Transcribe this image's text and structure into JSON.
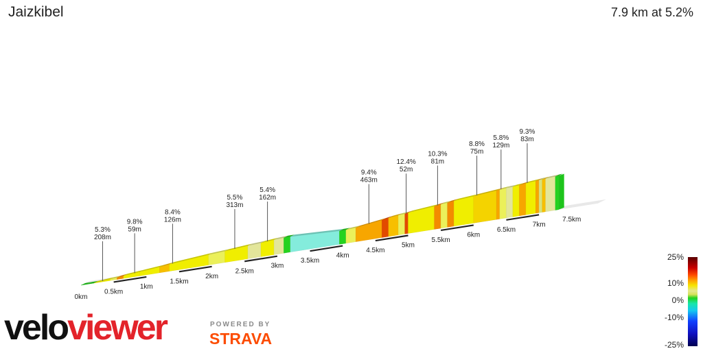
{
  "header": {
    "title": "Jaizkibel",
    "summary": "7.9 km at 5.2%"
  },
  "branding": {
    "logo_part1": "velo",
    "logo_part2": "viewer",
    "powered_by": "POWERED BY",
    "strava": "STRAVA",
    "logo_colors": {
      "velo": "#111111",
      "viewer": "#e3232a",
      "strava": "#fc4c02"
    }
  },
  "chart_data": {
    "type": "area",
    "subtype": "3d-gradient-profile",
    "title": "Jaizkibel",
    "xlabel": "",
    "ylabel": "",
    "xlim": [
      0,
      7.9
    ],
    "distance_ticks": [
      "0km",
      "0.5km",
      "1km",
      "1.5km",
      "2km",
      "2.5km",
      "3km",
      "3.5km",
      "4km",
      "4.5km",
      "5km",
      "5.5km",
      "6km",
      "6.5km",
      "7km",
      "7.5km"
    ],
    "segments": [
      {
        "end_km": 0.1,
        "gradient": 1.2
      },
      {
        "end_km": 0.2,
        "gradient": 0.5
      },
      {
        "end_km": 0.45,
        "gradient": 5.3
      },
      {
        "end_km": 0.55,
        "gradient": 4.6
      },
      {
        "end_km": 0.65,
        "gradient": 9.8
      },
      {
        "end_km": 0.9,
        "gradient": 5.8
      },
      {
        "end_km": 1.2,
        "gradient": 6.2
      },
      {
        "end_km": 1.35,
        "gradient": 8.4
      },
      {
        "end_km": 1.95,
        "gradient": 5.9
      },
      {
        "end_km": 2.2,
        "gradient": 4.5
      },
      {
        "end_km": 2.55,
        "gradient": 5.5
      },
      {
        "end_km": 2.75,
        "gradient": 4.2
      },
      {
        "end_km": 2.95,
        "gradient": 5.6
      },
      {
        "end_km": 3.1,
        "gradient": 3.6
      },
      {
        "end_km": 3.2,
        "gradient": 0.4
      },
      {
        "end_km": 3.95,
        "gradient": -3.0
      },
      {
        "end_km": 4.05,
        "gradient": 0.8
      },
      {
        "end_km": 4.2,
        "gradient": 4.8
      },
      {
        "end_km": 4.6,
        "gradient": 9.4
      },
      {
        "end_km": 4.7,
        "gradient": 11.8
      },
      {
        "end_km": 4.85,
        "gradient": 7.6
      },
      {
        "end_km": 4.95,
        "gradient": 5.2
      },
      {
        "end_km": 5.0,
        "gradient": 12.4
      },
      {
        "end_km": 5.4,
        "gradient": 6.1
      },
      {
        "end_km": 5.5,
        "gradient": 10.3
      },
      {
        "end_km": 5.6,
        "gradient": 5.2
      },
      {
        "end_km": 5.7,
        "gradient": 9.6
      },
      {
        "end_km": 6.0,
        "gradient": 5.6
      },
      {
        "end_km": 6.35,
        "gradient": 6.3
      },
      {
        "end_km": 6.4,
        "gradient": 8.8
      },
      {
        "end_km": 6.5,
        "gradient": 5.1
      },
      {
        "end_km": 6.6,
        "gradient": 3.6
      },
      {
        "end_km": 6.7,
        "gradient": 5.8
      },
      {
        "end_km": 6.8,
        "gradient": 9.0
      },
      {
        "end_km": 6.95,
        "gradient": 5.5
      },
      {
        "end_km": 7.0,
        "gradient": 9.3
      },
      {
        "end_km": 7.05,
        "gradient": 2.0
      },
      {
        "end_km": 7.1,
        "gradient": 7.6
      },
      {
        "end_km": 7.25,
        "gradient": 4.0
      },
      {
        "end_km": 7.3,
        "gradient": 1.2
      }
    ],
    "annotations": [
      {
        "at_km": 0.33,
        "grade": "5.3%",
        "length": "208m"
      },
      {
        "at_km": 0.82,
        "grade": "9.8%",
        "length": "59m"
      },
      {
        "at_km": 1.4,
        "grade": "8.4%",
        "length": "126m"
      },
      {
        "at_km": 2.35,
        "grade": "5.5%",
        "length": "313m"
      },
      {
        "at_km": 2.85,
        "grade": "5.4%",
        "length": "162m"
      },
      {
        "at_km": 4.4,
        "grade": "9.4%",
        "length": "463m"
      },
      {
        "at_km": 4.97,
        "grade": "12.4%",
        "length": "52m"
      },
      {
        "at_km": 5.45,
        "grade": "10.3%",
        "length": "81m"
      },
      {
        "at_km": 6.05,
        "grade": "8.8%",
        "length": "75m"
      },
      {
        "at_km": 6.42,
        "grade": "5.8%",
        "length": "129m"
      },
      {
        "at_km": 6.82,
        "grade": "9.3%",
        "length": "83m"
      }
    ],
    "color_scale": {
      "labels": [
        "25%",
        "10%",
        "0%",
        "-10%",
        "-25%"
      ],
      "values": [
        25,
        10,
        0,
        -10,
        -25
      ]
    }
  }
}
